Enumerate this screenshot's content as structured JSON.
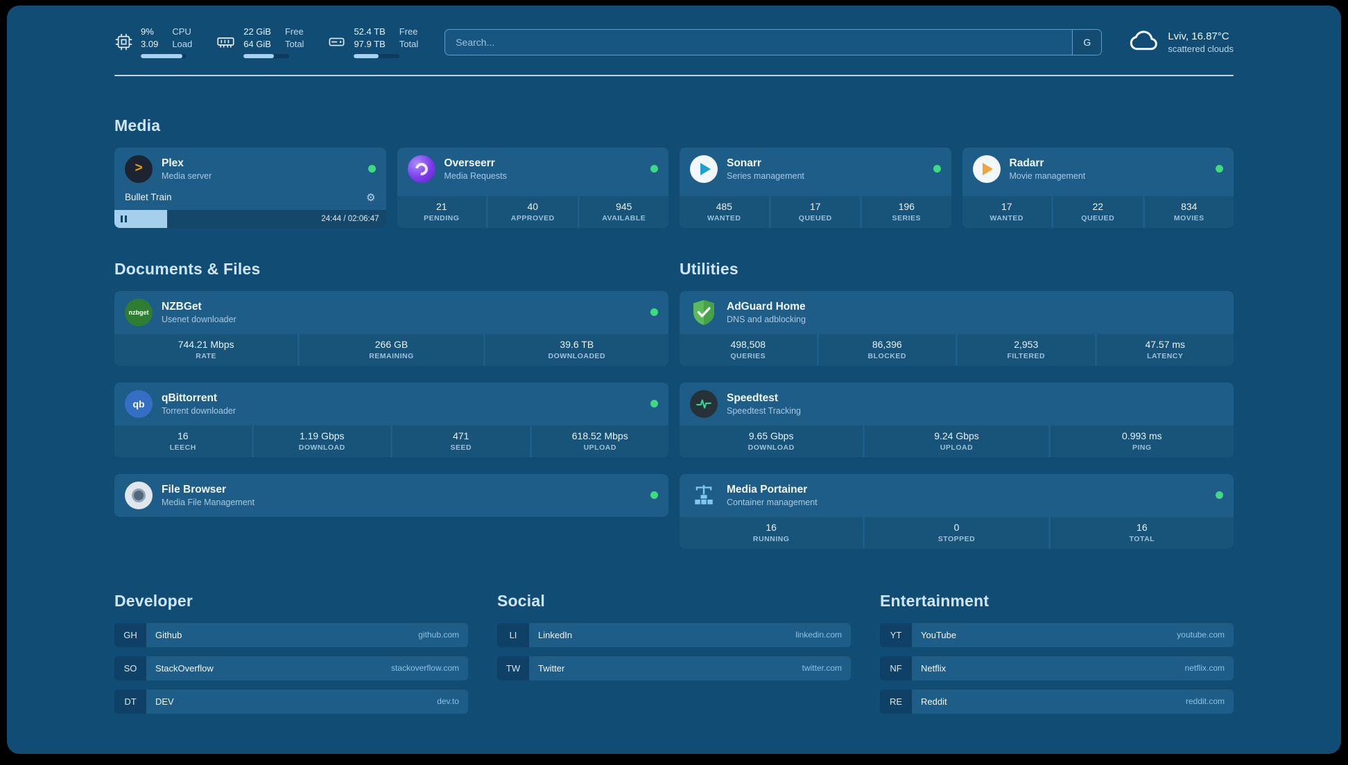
{
  "theme": {
    "page_bg": "#114C75",
    "card_bg": "#1E5D88",
    "status_online": "#3FD97F",
    "plex_accent": "#E5A00D"
  },
  "topbar": {
    "cpu": {
      "value1": "9%",
      "label1": "CPU",
      "value2": "3.09",
      "label2": "Load",
      "bar_percent": 91
    },
    "ram": {
      "value1": "22 GiB",
      "label1": "Free",
      "value2": "64 GiB",
      "label2": "Total",
      "bar_percent": 66
    },
    "disk": {
      "value1": "52.4 TB",
      "label1": "Free",
      "value2": "97.9 TB",
      "label2": "Total",
      "bar_percent": 54
    },
    "search": {
      "placeholder": "Search...",
      "button_label": "G"
    },
    "weather": {
      "location": "Lviv, 16.87°C",
      "condition": "scattered clouds"
    }
  },
  "media": {
    "heading": "Media",
    "plex": {
      "title": "Plex",
      "subtitle": "Media server",
      "status": "online",
      "icon_glyph": ">",
      "gear_glyph": "⚙",
      "now_playing": "Bullet Train",
      "progress_time": "24:44 / 02:06:47",
      "progress_percent": 19.5
    },
    "overseerr": {
      "title": "Overseerr",
      "subtitle": "Media Requests",
      "status": "online",
      "stats": [
        {
          "value": "21",
          "label": "PENDING"
        },
        {
          "value": "40",
          "label": "APPROVED"
        },
        {
          "value": "945",
          "label": "AVAILABLE"
        }
      ]
    },
    "sonarr": {
      "title": "Sonarr",
      "subtitle": "Series management",
      "status": "online",
      "stats": [
        {
          "value": "485",
          "label": "WANTED"
        },
        {
          "value": "17",
          "label": "QUEUED"
        },
        {
          "value": "196",
          "label": "SERIES"
        }
      ]
    },
    "radarr": {
      "title": "Radarr",
      "subtitle": "Movie management",
      "status": "online",
      "stats": [
        {
          "value": "17",
          "label": "WANTED"
        },
        {
          "value": "22",
          "label": "QUEUED"
        },
        {
          "value": "834",
          "label": "MOVIES"
        }
      ]
    }
  },
  "documents": {
    "heading": "Documents & Files",
    "nzbget": {
      "title": "NZBGet",
      "subtitle": "Usenet downloader",
      "status": "online",
      "icon_text": "nzbget",
      "stats": [
        {
          "value": "744.21 Mbps",
          "label": "RATE"
        },
        {
          "value": "266 GB",
          "label": "REMAINING"
        },
        {
          "value": "39.6 TB",
          "label": "DOWNLOADED"
        }
      ]
    },
    "qbittorrent": {
      "title": "qBittorrent",
      "subtitle": "Torrent downloader",
      "status": "online",
      "icon_text": "qb",
      "stats": [
        {
          "value": "16",
          "label": "LEECH"
        },
        {
          "value": "1.19 Gbps",
          "label": "DOWNLOAD"
        },
        {
          "value": "471",
          "label": "SEED"
        },
        {
          "value": "618.52 Mbps",
          "label": "UPLOAD"
        }
      ]
    },
    "filebrowser": {
      "title": "File Browser",
      "subtitle": "Media File Management",
      "status": "online"
    }
  },
  "utilities": {
    "heading": "Utilities",
    "adguard": {
      "title": "AdGuard Home",
      "subtitle": "DNS and adblocking",
      "stats": [
        {
          "value": "498,508",
          "label": "QUERIES"
        },
        {
          "value": "86,396",
          "label": "BLOCKED"
        },
        {
          "value": "2,953",
          "label": "FILTERED"
        },
        {
          "value": "47.57 ms",
          "label": "LATENCY"
        }
      ]
    },
    "speedtest": {
      "title": "Speedtest",
      "subtitle": "Speedtest Tracking",
      "stats": [
        {
          "value": "9.65 Gbps",
          "label": "DOWNLOAD"
        },
        {
          "value": "9.24 Gbps",
          "label": "UPLOAD"
        },
        {
          "value": "0.993 ms",
          "label": "PING"
        }
      ]
    },
    "portainer": {
      "title": "Media Portainer",
      "subtitle": "Container management",
      "status": "online",
      "stats": [
        {
          "value": "16",
          "label": "RUNNING"
        },
        {
          "value": "0",
          "label": "STOPPED"
        },
        {
          "value": "16",
          "label": "TOTAL"
        }
      ]
    }
  },
  "bookmarks": {
    "developer": {
      "heading": "Developer",
      "items": [
        {
          "abbr": "GH",
          "name": "Github",
          "url": "github.com"
        },
        {
          "abbr": "SO",
          "name": "StackOverflow",
          "url": "stackoverflow.com"
        },
        {
          "abbr": "DT",
          "name": "DEV",
          "url": "dev.to"
        }
      ]
    },
    "social": {
      "heading": "Social",
      "items": [
        {
          "abbr": "LI",
          "name": "LinkedIn",
          "url": "linkedin.com"
        },
        {
          "abbr": "TW",
          "name": "Twitter",
          "url": "twitter.com"
        }
      ]
    },
    "entertainment": {
      "heading": "Entertainment",
      "items": [
        {
          "abbr": "YT",
          "name": "YouTube",
          "url": "youtube.com"
        },
        {
          "abbr": "NF",
          "name": "Netflix",
          "url": "netflix.com"
        },
        {
          "abbr": "RE",
          "name": "Reddit",
          "url": "reddit.com"
        }
      ]
    }
  }
}
